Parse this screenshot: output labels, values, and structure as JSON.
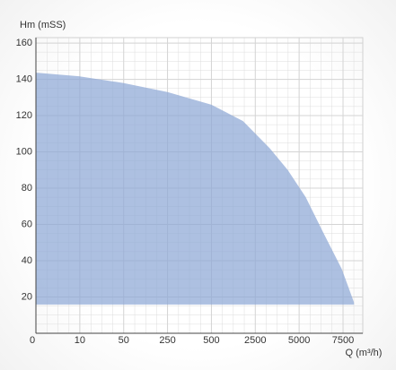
{
  "chart_data": {
    "type": "area",
    "y_label": "Hm (mSS)",
    "x_label": "Q (m³/h)",
    "xlim": [
      0,
      7.45
    ],
    "ylim": [
      0,
      163
    ],
    "xticks": [
      {
        "value": 0,
        "label": "0"
      },
      {
        "value": 1,
        "label": "10"
      },
      {
        "value": 2,
        "label": "50"
      },
      {
        "value": 3,
        "label": "250"
      },
      {
        "value": 4,
        "label": "500"
      },
      {
        "value": 5,
        "label": "2500"
      },
      {
        "value": 6,
        "label": "5000"
      },
      {
        "value": 7,
        "label": "7500"
      }
    ],
    "yticks": [
      20,
      40,
      60,
      80,
      100,
      120,
      140,
      160
    ],
    "grid": true,
    "series": [
      {
        "color": "#8ea8d6",
        "base": 16,
        "x": [
          0,
          0.98,
          1.99,
          3,
          4,
          4.72,
          5.33,
          5.74,
          6.15,
          6.56,
          6.97,
          7.25
        ],
        "values": [
          143.7,
          141.7,
          138,
          133,
          126,
          117,
          102,
          90,
          75,
          55,
          35.5,
          17
        ]
      }
    ]
  }
}
